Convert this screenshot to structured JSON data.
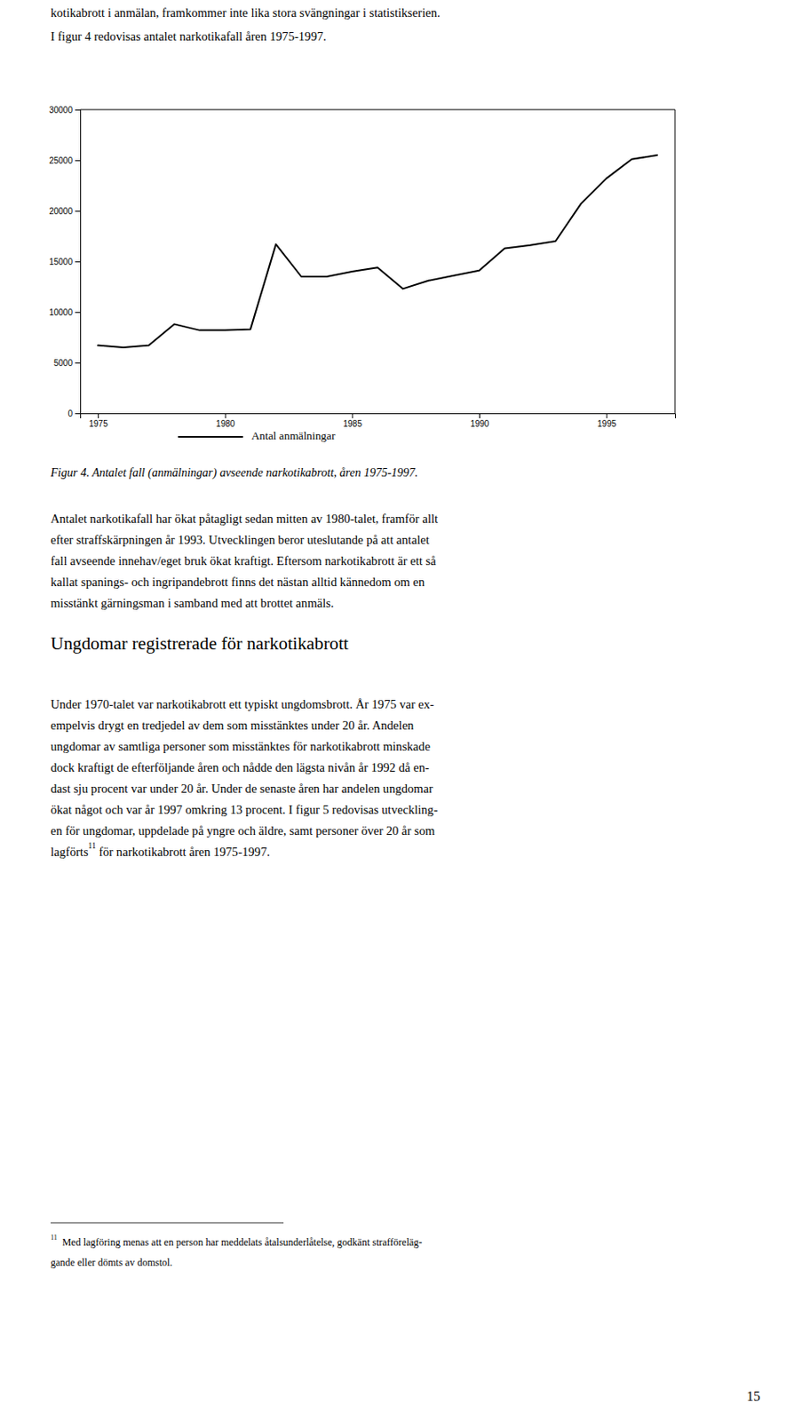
{
  "chart_data": {
    "type": "line",
    "x": [
      1975,
      1976,
      1977,
      1978,
      1979,
      1980,
      1981,
      1982,
      1983,
      1984,
      1985,
      1986,
      1987,
      1988,
      1989,
      1990,
      1991,
      1992,
      1993,
      1994,
      1995,
      1996,
      1997
    ],
    "series": [
      {
        "name": "Antal anmälningar",
        "color": "#000000",
        "values": [
          6700,
          6500,
          6700,
          8800,
          8200,
          8200,
          8300,
          16700,
          13500,
          13500,
          14000,
          14400,
          12300,
          13100,
          13600,
          14100,
          16300,
          16600,
          17000,
          20700,
          23200,
          25100,
          25500
        ]
      }
    ],
    "xlim": [
      1974.3,
      1997.7
    ],
    "xticks": [
      1975,
      1980,
      1985,
      1990,
      1995
    ],
    "ylim": [
      0,
      30000
    ],
    "yticks": [
      0,
      5000,
      10000,
      15000,
      20000,
      25000,
      30000
    ],
    "grid": false,
    "legend": "bottom"
  },
  "page": {
    "intro": [
      "kotikabrott i anmälan, framkommer inte lika stora svängningar i statistikserien.",
      "I figur 4 redovisas antalet narkotikafall åren 1975-1997."
    ],
    "caption": "Figur 4. Antalet fall (anmälningar) avseende narkotikabrott, åren 1975-1997.",
    "body1": [
      "Antalet narkotikafall har ökat påtagligt sedan mitten av 1980-talet, framför allt",
      "efter straffskärpningen år 1993. Utvecklingen beror uteslutande på att antalet",
      "fall avseende innehav/eget bruk ökat kraftigt. Eftersom narkotikabrott är ett så",
      "kallat spanings- och ingripandebrott finns det nästan alltid kännedom om en",
      "misstänkt gärningsman i samband med att brottet anmäls."
    ],
    "heading": "Ungdomar registrerade för narkotikabrott",
    "body2": [
      "Under 1970-talet var narkotikabrott ett typiskt ungdomsbrott. År 1975 var ex-",
      "empelvis drygt en tredjedel av dem som misstänktes under 20 år. Andelen",
      "ungdomar av samtliga personer som misstänktes för narkotikabrott minskade",
      "dock kraftigt de efterföljande åren och nådde den lägsta nivån år 1992 då en-",
      "dast sju procent var under 20 år. Under de senaste åren har andelen ungdomar",
      "ökat något och var år 1997 omkring 13 procent. I figur 5 redovisas utveckling-",
      "en för ungdomar, uppdelade på yngre och äldre, samt personer över 20 år som"
    ],
    "last_line": [
      "lagförts",
      "11",
      " för narkotikabrott åren 1975-1997."
    ],
    "footnote_mark": "11",
    "footnotes": [
      "Med lagföring menas att en person har meddelats åtalsunderlåtelse, godkänt strafföreläg-",
      "gande eller dömts av domstol."
    ],
    "page_number": "15"
  }
}
